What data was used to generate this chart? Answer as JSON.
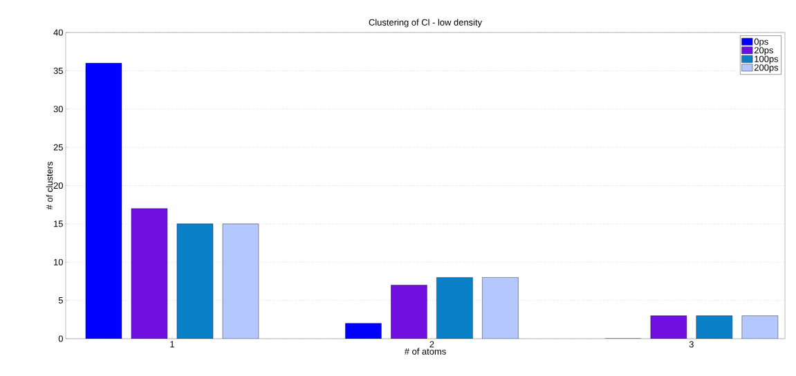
{
  "chart_data": {
    "type": "bar",
    "title": "Clustering of Cl - low density",
    "xlabel": "# of atoms",
    "ylabel": "# of clusters",
    "categories": [
      "1",
      "2",
      "3"
    ],
    "series": [
      {
        "name": "0ps",
        "color": "#0000ff",
        "values": [
          36,
          2,
          0
        ]
      },
      {
        "name": "20ps",
        "color": "#7010e0",
        "values": [
          17,
          7,
          3
        ]
      },
      {
        "name": "100ps",
        "color": "#0a80c8",
        "values": [
          15,
          8,
          3
        ]
      },
      {
        "name": "200ps",
        "color": "#b4c8ff",
        "values": [
          15,
          8,
          3
        ]
      }
    ],
    "ylim": [
      0,
      40
    ],
    "yticks": [
      0,
      5,
      10,
      15,
      20,
      25,
      30,
      35,
      40
    ],
    "grid": "y",
    "legend": "top right"
  }
}
